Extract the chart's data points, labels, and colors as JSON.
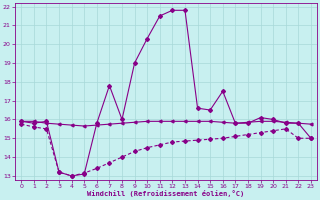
{
  "title": "",
  "xlabel": "Windchill (Refroidissement éolien,°C)",
  "ylabel": "",
  "bg_color": "#c8f0f0",
  "grid_color": "#a8d8d8",
  "line_color": "#880088",
  "xlim": [
    -0.5,
    23.5
  ],
  "ylim": [
    12.8,
    22.2
  ],
  "xticks": [
    0,
    1,
    2,
    3,
    4,
    5,
    6,
    7,
    8,
    9,
    10,
    11,
    12,
    13,
    14,
    15,
    16,
    17,
    18,
    19,
    20,
    21,
    22,
    23
  ],
  "yticks": [
    13,
    14,
    15,
    16,
    17,
    18,
    19,
    20,
    21,
    22
  ],
  "line1_x": [
    0,
    1,
    2,
    3,
    4,
    5,
    6,
    7,
    8,
    9,
    10,
    11,
    12,
    13,
    14,
    15,
    16,
    17,
    18,
    19,
    20,
    21,
    22,
    23
  ],
  "line1_y": [
    15.9,
    15.9,
    15.8,
    15.75,
    15.7,
    15.65,
    15.7,
    15.75,
    15.8,
    15.85,
    15.9,
    15.9,
    15.9,
    15.9,
    15.9,
    15.9,
    15.85,
    15.8,
    15.85,
    15.9,
    15.9,
    15.85,
    15.8,
    15.75
  ],
  "line2_x": [
    0,
    1,
    2,
    3,
    4,
    5,
    6,
    7,
    8,
    9,
    10,
    11,
    12,
    13,
    14,
    15,
    16,
    17,
    18,
    19,
    20,
    21,
    22,
    23
  ],
  "line2_y": [
    15.9,
    15.8,
    15.9,
    13.2,
    13.0,
    13.1,
    15.8,
    17.8,
    16.0,
    19.0,
    20.3,
    21.5,
    21.8,
    21.8,
    16.6,
    16.5,
    17.5,
    15.8,
    15.8,
    16.1,
    16.0,
    15.8,
    15.8,
    15.0
  ],
  "line3_x": [
    0,
    1,
    2,
    3,
    4,
    5,
    6,
    7,
    8,
    9,
    10,
    11,
    12,
    13,
    14,
    15,
    16,
    17,
    18,
    19,
    20,
    21,
    22,
    23
  ],
  "line3_y": [
    15.75,
    15.6,
    15.5,
    13.2,
    13.0,
    13.15,
    13.4,
    13.7,
    14.0,
    14.3,
    14.5,
    14.65,
    14.8,
    14.85,
    14.9,
    14.95,
    15.0,
    15.1,
    15.2,
    15.3,
    15.4,
    15.5,
    15.0,
    15.0
  ]
}
